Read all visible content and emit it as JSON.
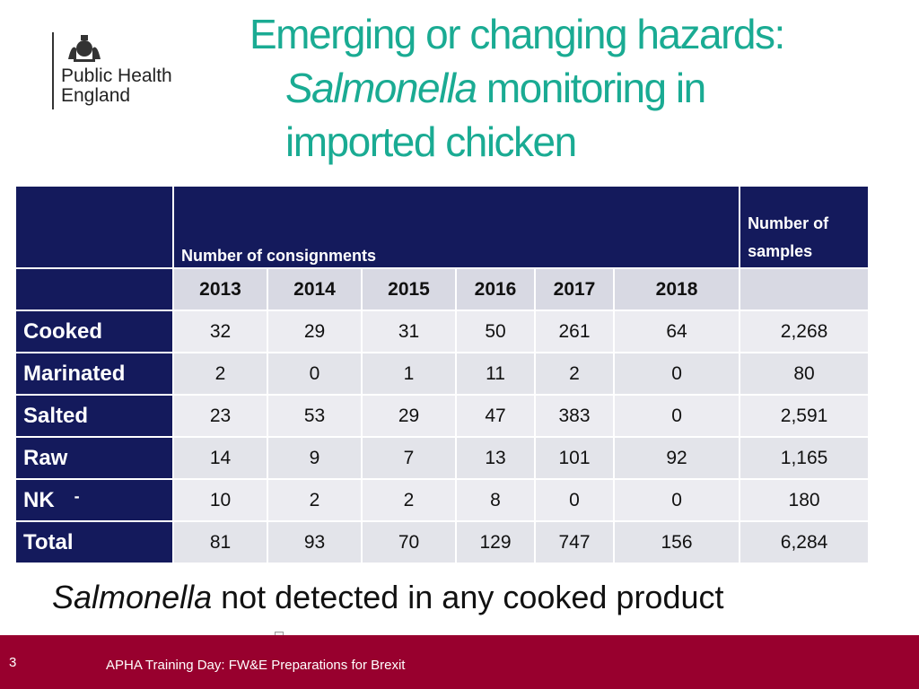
{
  "logo": {
    "line1": "Public Health",
    "line2": "England"
  },
  "title": {
    "line1": "Emerging or changing hazards:",
    "line2_italic": "Salmonella",
    "line2_rest": " monitoring in",
    "line3": "imported chicken"
  },
  "table": {
    "header_consignments": "Number of consignments",
    "header_samples": "Number of samples",
    "years": [
      "2013",
      "2014",
      "2015",
      "2016",
      "2017",
      "2018"
    ],
    "rows": [
      {
        "label": "Cooked",
        "values": [
          "32",
          "29",
          "31",
          "50",
          "261",
          "64"
        ],
        "samples": "2,268"
      },
      {
        "label": "Marinated",
        "values": [
          "2",
          "0",
          "1",
          "11",
          "2",
          "0"
        ],
        "samples": "80"
      },
      {
        "label": "Salted",
        "values": [
          "23",
          "53",
          "29",
          "47",
          "383",
          "0"
        ],
        "samples": "2,591"
      },
      {
        "label": "Raw",
        "values": [
          "14",
          "9",
          "7",
          "13",
          "101",
          "92"
        ],
        "samples": "1,165"
      },
      {
        "label": "NK",
        "dash": "-",
        "values": [
          "10",
          "2",
          "2",
          "8",
          "0",
          "0"
        ],
        "samples": "180"
      },
      {
        "label": "Total",
        "values": [
          "81",
          "93",
          "70",
          "129",
          "747",
          "156"
        ],
        "samples": "6,284"
      }
    ]
  },
  "note": {
    "italic": "Salmonella",
    "rest": " not detected in any cooked product"
  },
  "footer": {
    "page_number": "3",
    "text": "APHA Training Day: FW&E Preparations for Brexit"
  },
  "colors": {
    "title": "#1aab93",
    "header_bg": "#141a5c",
    "footer_bg": "#98002e"
  }
}
